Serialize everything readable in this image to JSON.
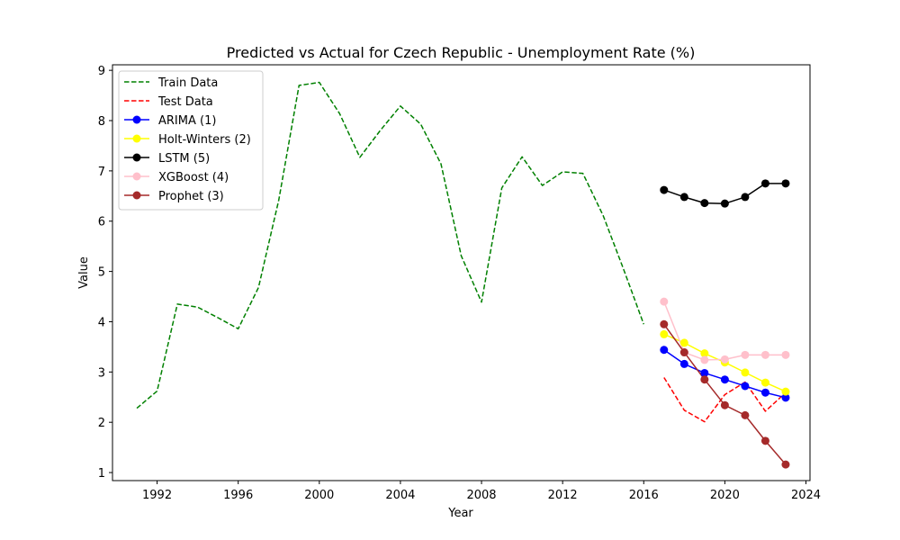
{
  "chart_data": {
    "type": "line",
    "title": "Predicted vs Actual for Czech Republic - Unemployment Rate (%)",
    "xlabel": "Year",
    "ylabel": "Value",
    "xlim": [
      1989.8,
      2024.2
    ],
    "ylim": [
      0.84,
      9.11
    ],
    "xticks": [
      1992,
      1996,
      2000,
      2004,
      2008,
      2012,
      2016,
      2020,
      2024
    ],
    "yticks": [
      1,
      2,
      3,
      4,
      5,
      6,
      7,
      8,
      9
    ],
    "grid": false,
    "legend_position": "top-left",
    "series": [
      {
        "name": "Train Data",
        "color": "#008000",
        "style": "dashed",
        "marker": false,
        "x": [
          1991,
          1992,
          1993,
          1994,
          1995,
          1996,
          1997,
          1998,
          1999,
          2000,
          2001,
          2002,
          2003,
          2004,
          2005,
          2006,
          2007,
          2008,
          2009,
          2010,
          2011,
          2012,
          2013,
          2014,
          2015,
          2016
        ],
        "y": [
          2.28,
          2.62,
          4.35,
          4.29,
          4.08,
          3.86,
          4.68,
          6.42,
          8.7,
          8.76,
          8.14,
          7.27,
          7.8,
          8.29,
          7.93,
          7.14,
          5.31,
          4.39,
          6.66,
          7.28,
          6.71,
          6.98,
          6.95,
          6.11,
          5.05,
          3.95
        ]
      },
      {
        "name": "Test Data",
        "color": "#ff0000",
        "style": "dashed",
        "marker": false,
        "x": [
          2017,
          2018,
          2019,
          2020,
          2021,
          2022,
          2023
        ],
        "y": [
          2.89,
          2.24,
          2.01,
          2.55,
          2.8,
          2.22,
          2.59
        ]
      },
      {
        "name": "ARIMA (1)",
        "color": "#0000ff",
        "style": "solid",
        "marker": true,
        "x": [
          2017,
          2018,
          2019,
          2020,
          2021,
          2022,
          2023
        ],
        "y": [
          3.44,
          3.16,
          2.98,
          2.85,
          2.72,
          2.59,
          2.49
        ]
      },
      {
        "name": "Holt-Winters (2)",
        "color": "#ffff00",
        "style": "solid",
        "marker": true,
        "x": [
          2017,
          2018,
          2019,
          2020,
          2021,
          2022,
          2023
        ],
        "y": [
          3.75,
          3.58,
          3.37,
          3.19,
          2.99,
          2.79,
          2.61
        ]
      },
      {
        "name": "LSTM (5)",
        "color": "#000000",
        "style": "solid",
        "marker": true,
        "x": [
          2017,
          2018,
          2019,
          2020,
          2021,
          2022,
          2023
        ],
        "y": [
          6.62,
          6.48,
          6.36,
          6.35,
          6.48,
          6.75,
          6.75
        ]
      },
      {
        "name": "XGBoost (4)",
        "color": "#ffc0cb",
        "style": "solid",
        "marker": true,
        "x": [
          2017,
          2018,
          2019,
          2020,
          2021,
          2022,
          2023
        ],
        "y": [
          4.4,
          3.39,
          3.24,
          3.25,
          3.34,
          3.34,
          3.34
        ]
      },
      {
        "name": "Prophet (3)",
        "color": "#a52a2a",
        "style": "solid",
        "marker": true,
        "x": [
          2017,
          2018,
          2019,
          2020,
          2021,
          2022,
          2023
        ],
        "y": [
          3.95,
          3.39,
          2.85,
          2.34,
          2.14,
          1.63,
          1.16
        ]
      }
    ]
  }
}
